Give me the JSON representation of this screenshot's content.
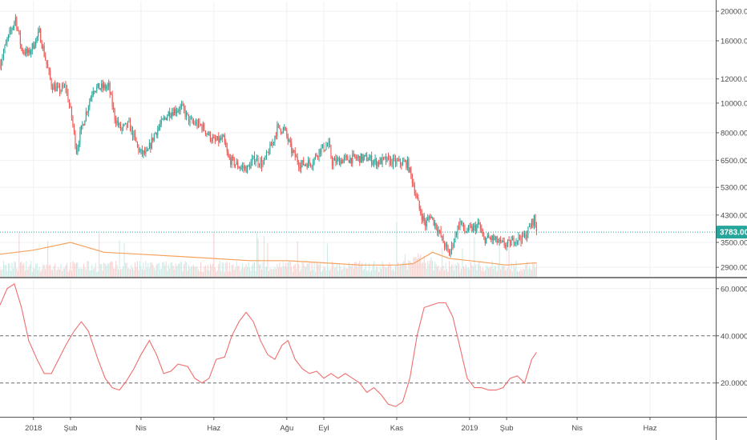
{
  "chart_data": [
    {
      "type": "candlestick",
      "panel": "price",
      "scale": "log",
      "ylim": [
        2700,
        21500
      ],
      "price_ticks": [
        "20000.00",
        "16000.00",
        "12000.00",
        "10000.00",
        "8000.00",
        "6500.00",
        "5300.00",
        "4300.00",
        "3500.00",
        "2900.00"
      ],
      "price_tick_values": [
        20000,
        16000,
        12000,
        10000,
        8000,
        6500,
        5300,
        4300,
        3500,
        2900
      ],
      "last_price": 3783,
      "last_price_label": "3783.00",
      "x_range": [
        "2017-12-04",
        "2019-07-26"
      ],
      "time_labels": [
        "2018",
        "Şub",
        "Nis",
        "Haz",
        "Ağu",
        "Eyl",
        "Kas",
        "2019",
        "Şub",
        "Nis",
        "Haz"
      ],
      "time_label_dates": [
        "2018-01-01",
        "2018-02-01",
        "2018-04-01",
        "2018-06-01",
        "2018-08-01",
        "2018-09-01",
        "2018-11-01",
        "2019-01-01",
        "2019-02-01",
        "2019-04-01",
        "2019-06-01"
      ],
      "trend": [
        [
          "2017-12-04",
          13500
        ],
        [
          "2017-12-10",
          16000
        ],
        [
          "2017-12-17",
          19000
        ],
        [
          "2017-12-22",
          15000
        ],
        [
          "2017-12-28",
          14500
        ],
        [
          "2018-01-06",
          17000
        ],
        [
          "2018-01-10",
          14500
        ],
        [
          "2018-01-16",
          11500
        ],
        [
          "2018-01-22",
          11000
        ],
        [
          "2018-01-28",
          11300
        ],
        [
          "2018-02-02",
          9000
        ],
        [
          "2018-02-06",
          7000
        ],
        [
          "2018-02-10",
          8200
        ],
        [
          "2018-02-20",
          11200
        ],
        [
          "2018-03-05",
          11300
        ],
        [
          "2018-03-10",
          9000
        ],
        [
          "2018-03-15",
          8200
        ],
        [
          "2018-03-22",
          8500
        ],
        [
          "2018-03-31",
          6900
        ],
        [
          "2018-04-06",
          6800
        ],
        [
          "2018-04-12",
          7900
        ],
        [
          "2018-04-24",
          9300
        ],
        [
          "2018-05-05",
          9700
        ],
        [
          "2018-05-12",
          8700
        ],
        [
          "2018-05-22",
          8400
        ],
        [
          "2018-06-01",
          7500
        ],
        [
          "2018-06-09",
          7600
        ],
        [
          "2018-06-13",
          6600
        ],
        [
          "2018-06-22",
          6200
        ],
        [
          "2018-06-29",
          6100
        ],
        [
          "2018-07-05",
          6600
        ],
        [
          "2018-07-12",
          6300
        ],
        [
          "2018-07-20",
          7400
        ],
        [
          "2018-07-24",
          8300
        ],
        [
          "2018-07-30",
          8200
        ],
        [
          "2018-08-05",
          7000
        ],
        [
          "2018-08-12",
          6300
        ],
        [
          "2018-08-22",
          6400
        ],
        [
          "2018-08-28",
          7000
        ],
        [
          "2018-09-05",
          7300
        ],
        [
          "2018-09-08",
          6400
        ],
        [
          "2018-09-15",
          6500
        ],
        [
          "2018-09-25",
          6600
        ],
        [
          "2018-10-08",
          6600
        ],
        [
          "2018-10-15",
          6400
        ],
        [
          "2018-10-22",
          6500
        ],
        [
          "2018-11-01",
          6400
        ],
        [
          "2018-11-10",
          6350
        ],
        [
          "2018-11-14",
          5600
        ],
        [
          "2018-11-20",
          4500
        ],
        [
          "2018-11-25",
          4000
        ],
        [
          "2018-11-29",
          4300
        ],
        [
          "2018-12-05",
          3900
        ],
        [
          "2018-12-10",
          3500
        ],
        [
          "2018-12-15",
          3200
        ],
        [
          "2018-12-20",
          3700
        ],
        [
          "2018-12-24",
          4100
        ],
        [
          "2018-12-28",
          3800
        ],
        [
          "2019-01-05",
          3900
        ],
        [
          "2019-01-09",
          4000
        ],
        [
          "2019-01-12",
          3600
        ],
        [
          "2019-01-20",
          3600
        ],
        [
          "2019-01-28",
          3450
        ],
        [
          "2019-02-03",
          3450
        ],
        [
          "2019-02-08",
          3600
        ],
        [
          "2019-02-16",
          3650
        ],
        [
          "2019-02-20",
          3900
        ],
        [
          "2019-02-24",
          4200
        ],
        [
          "2019-02-26",
          3783
        ]
      ],
      "volume_ma": [
        [
          "2017-12-04",
          3200
        ],
        [
          "2018-01-01",
          3300
        ],
        [
          "2018-02-01",
          3500
        ],
        [
          "2018-03-01",
          3250
        ],
        [
          "2018-04-01",
          3200
        ],
        [
          "2018-05-01",
          3150
        ],
        [
          "2018-06-01",
          3100
        ],
        [
          "2018-07-01",
          3050
        ],
        [
          "2018-08-01",
          3050
        ],
        [
          "2018-09-01",
          3000
        ],
        [
          "2018-10-01",
          2950
        ],
        [
          "2018-11-01",
          2950
        ],
        [
          "2018-11-15",
          2980
        ],
        [
          "2018-12-01",
          3250
        ],
        [
          "2018-12-15",
          3100
        ],
        [
          "2019-01-01",
          3050
        ],
        [
          "2019-02-01",
          2950
        ],
        [
          "2019-02-26",
          3000
        ]
      ]
    },
    {
      "type": "line",
      "panel": "indicator",
      "ylim": [
        6,
        64
      ],
      "ticks": [
        "60.0000",
        "40.0000",
        "20.0000"
      ],
      "tick_values": [
        60,
        40,
        20
      ],
      "reference_lines": [
        40,
        20
      ],
      "series": [
        {
          "color": "#ef6e6e",
          "points": [
            [
              "2017-12-04",
              53
            ],
            [
              "2017-12-10",
              60
            ],
            [
              "2017-12-16",
              62
            ],
            [
              "2017-12-22",
              52
            ],
            [
              "2017-12-28",
              38
            ],
            [
              "2018-01-04",
              30
            ],
            [
              "2018-01-10",
              24
            ],
            [
              "2018-01-16",
              24
            ],
            [
              "2018-01-22",
              30
            ],
            [
              "2018-01-28",
              36
            ],
            [
              "2018-02-04",
              42
            ],
            [
              "2018-02-10",
              46
            ],
            [
              "2018-02-16",
              42
            ],
            [
              "2018-02-24",
              30
            ],
            [
              "2018-03-02",
              22
            ],
            [
              "2018-03-08",
              18
            ],
            [
              "2018-03-14",
              17
            ],
            [
              "2018-03-20",
              21
            ],
            [
              "2018-03-26",
              26
            ],
            [
              "2018-04-01",
              32
            ],
            [
              "2018-04-08",
              38
            ],
            [
              "2018-04-14",
              32
            ],
            [
              "2018-04-20",
              24
            ],
            [
              "2018-04-26",
              25
            ],
            [
              "2018-05-02",
              28
            ],
            [
              "2018-05-10",
              27
            ],
            [
              "2018-05-16",
              22
            ],
            [
              "2018-05-22",
              20
            ],
            [
              "2018-05-28",
              22
            ],
            [
              "2018-06-03",
              30
            ],
            [
              "2018-06-10",
              31
            ],
            [
              "2018-06-16",
              40
            ],
            [
              "2018-06-22",
              46
            ],
            [
              "2018-06-28",
              50
            ],
            [
              "2018-07-04",
              46
            ],
            [
              "2018-07-10",
              38
            ],
            [
              "2018-07-16",
              32
            ],
            [
              "2018-07-22",
              30
            ],
            [
              "2018-07-28",
              36
            ],
            [
              "2018-08-02",
              38
            ],
            [
              "2018-08-08",
              30
            ],
            [
              "2018-08-14",
              26
            ],
            [
              "2018-08-20",
              24
            ],
            [
              "2018-08-26",
              25
            ],
            [
              "2018-09-01",
              22
            ],
            [
              "2018-09-07",
              24
            ],
            [
              "2018-09-13",
              22
            ],
            [
              "2018-09-19",
              24
            ],
            [
              "2018-09-25",
              22
            ],
            [
              "2018-10-01",
              20
            ],
            [
              "2018-10-07",
              16
            ],
            [
              "2018-10-13",
              18
            ],
            [
              "2018-10-19",
              15
            ],
            [
              "2018-10-25",
              11
            ],
            [
              "2018-10-31",
              10
            ],
            [
              "2018-11-06",
              12
            ],
            [
              "2018-11-12",
              22
            ],
            [
              "2018-11-18",
              40
            ],
            [
              "2018-11-24",
              52
            ],
            [
              "2018-11-30",
              53
            ],
            [
              "2018-12-06",
              54
            ],
            [
              "2018-12-12",
              54
            ],
            [
              "2018-12-18",
              48
            ],
            [
              "2018-12-24",
              35
            ],
            [
              "2018-12-30",
              22
            ],
            [
              "2019-01-05",
              18
            ],
            [
              "2019-01-11",
              18
            ],
            [
              "2019-01-17",
              17
            ],
            [
              "2019-01-23",
              17
            ],
            [
              "2019-01-29",
              18
            ],
            [
              "2019-02-04",
              22
            ],
            [
              "2019-02-10",
              23
            ],
            [
              "2019-02-16",
              20
            ],
            [
              "2019-02-22",
              30
            ],
            [
              "2019-02-26",
              33
            ]
          ]
        }
      ]
    }
  ]
}
